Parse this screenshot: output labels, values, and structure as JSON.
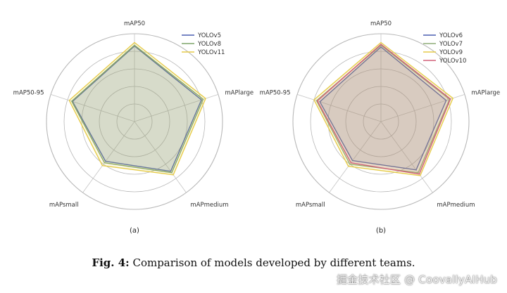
{
  "chart_data": [
    {
      "type": "radar",
      "panel_label": "(a)",
      "axes": [
        "mAP50",
        "mAPlarge",
        "mAPmedium",
        "mAPsmall",
        "mAP50-95"
      ],
      "rlim": [
        0,
        1
      ],
      "grid": true,
      "legend_position": "top-right",
      "series": [
        {
          "name": "YOLOv5",
          "color": "#4a5fb0",
          "values": [
            0.86,
            0.8,
            0.7,
            0.56,
            0.74
          ]
        },
        {
          "name": "YOLOv8",
          "color": "#7fa56a",
          "values": [
            0.87,
            0.82,
            0.72,
            0.58,
            0.75
          ]
        },
        {
          "name": "YOLOv11",
          "color": "#e6cc4a",
          "values": [
            0.9,
            0.85,
            0.75,
            0.62,
            0.78
          ]
        }
      ]
    },
    {
      "type": "radar",
      "panel_label": "(b)",
      "axes": [
        "mAP50",
        "mAPlarge",
        "mAPmedium",
        "mAPsmall",
        "mAP50-95"
      ],
      "rlim": [
        0,
        1
      ],
      "grid": true,
      "legend_position": "top-right",
      "series": [
        {
          "name": "YOLOv6",
          "color": "#4a5fb0",
          "values": [
            0.85,
            0.78,
            0.68,
            0.55,
            0.73
          ]
        },
        {
          "name": "YOLOv7",
          "color": "#8fae78",
          "values": [
            0.87,
            0.82,
            0.72,
            0.6,
            0.77
          ]
        },
        {
          "name": "YOLOv9",
          "color": "#e6cc4a",
          "values": [
            0.9,
            0.86,
            0.76,
            0.63,
            0.8
          ]
        },
        {
          "name": "YOLOv10",
          "color": "#d2607a",
          "values": [
            0.88,
            0.83,
            0.74,
            0.58,
            0.76
          ]
        }
      ]
    }
  ],
  "caption": {
    "label": "Fig. 4:",
    "text": " Comparison of models developed by different teams."
  },
  "watermark": "掘金技术社区 @ CoovallyAIHub"
}
